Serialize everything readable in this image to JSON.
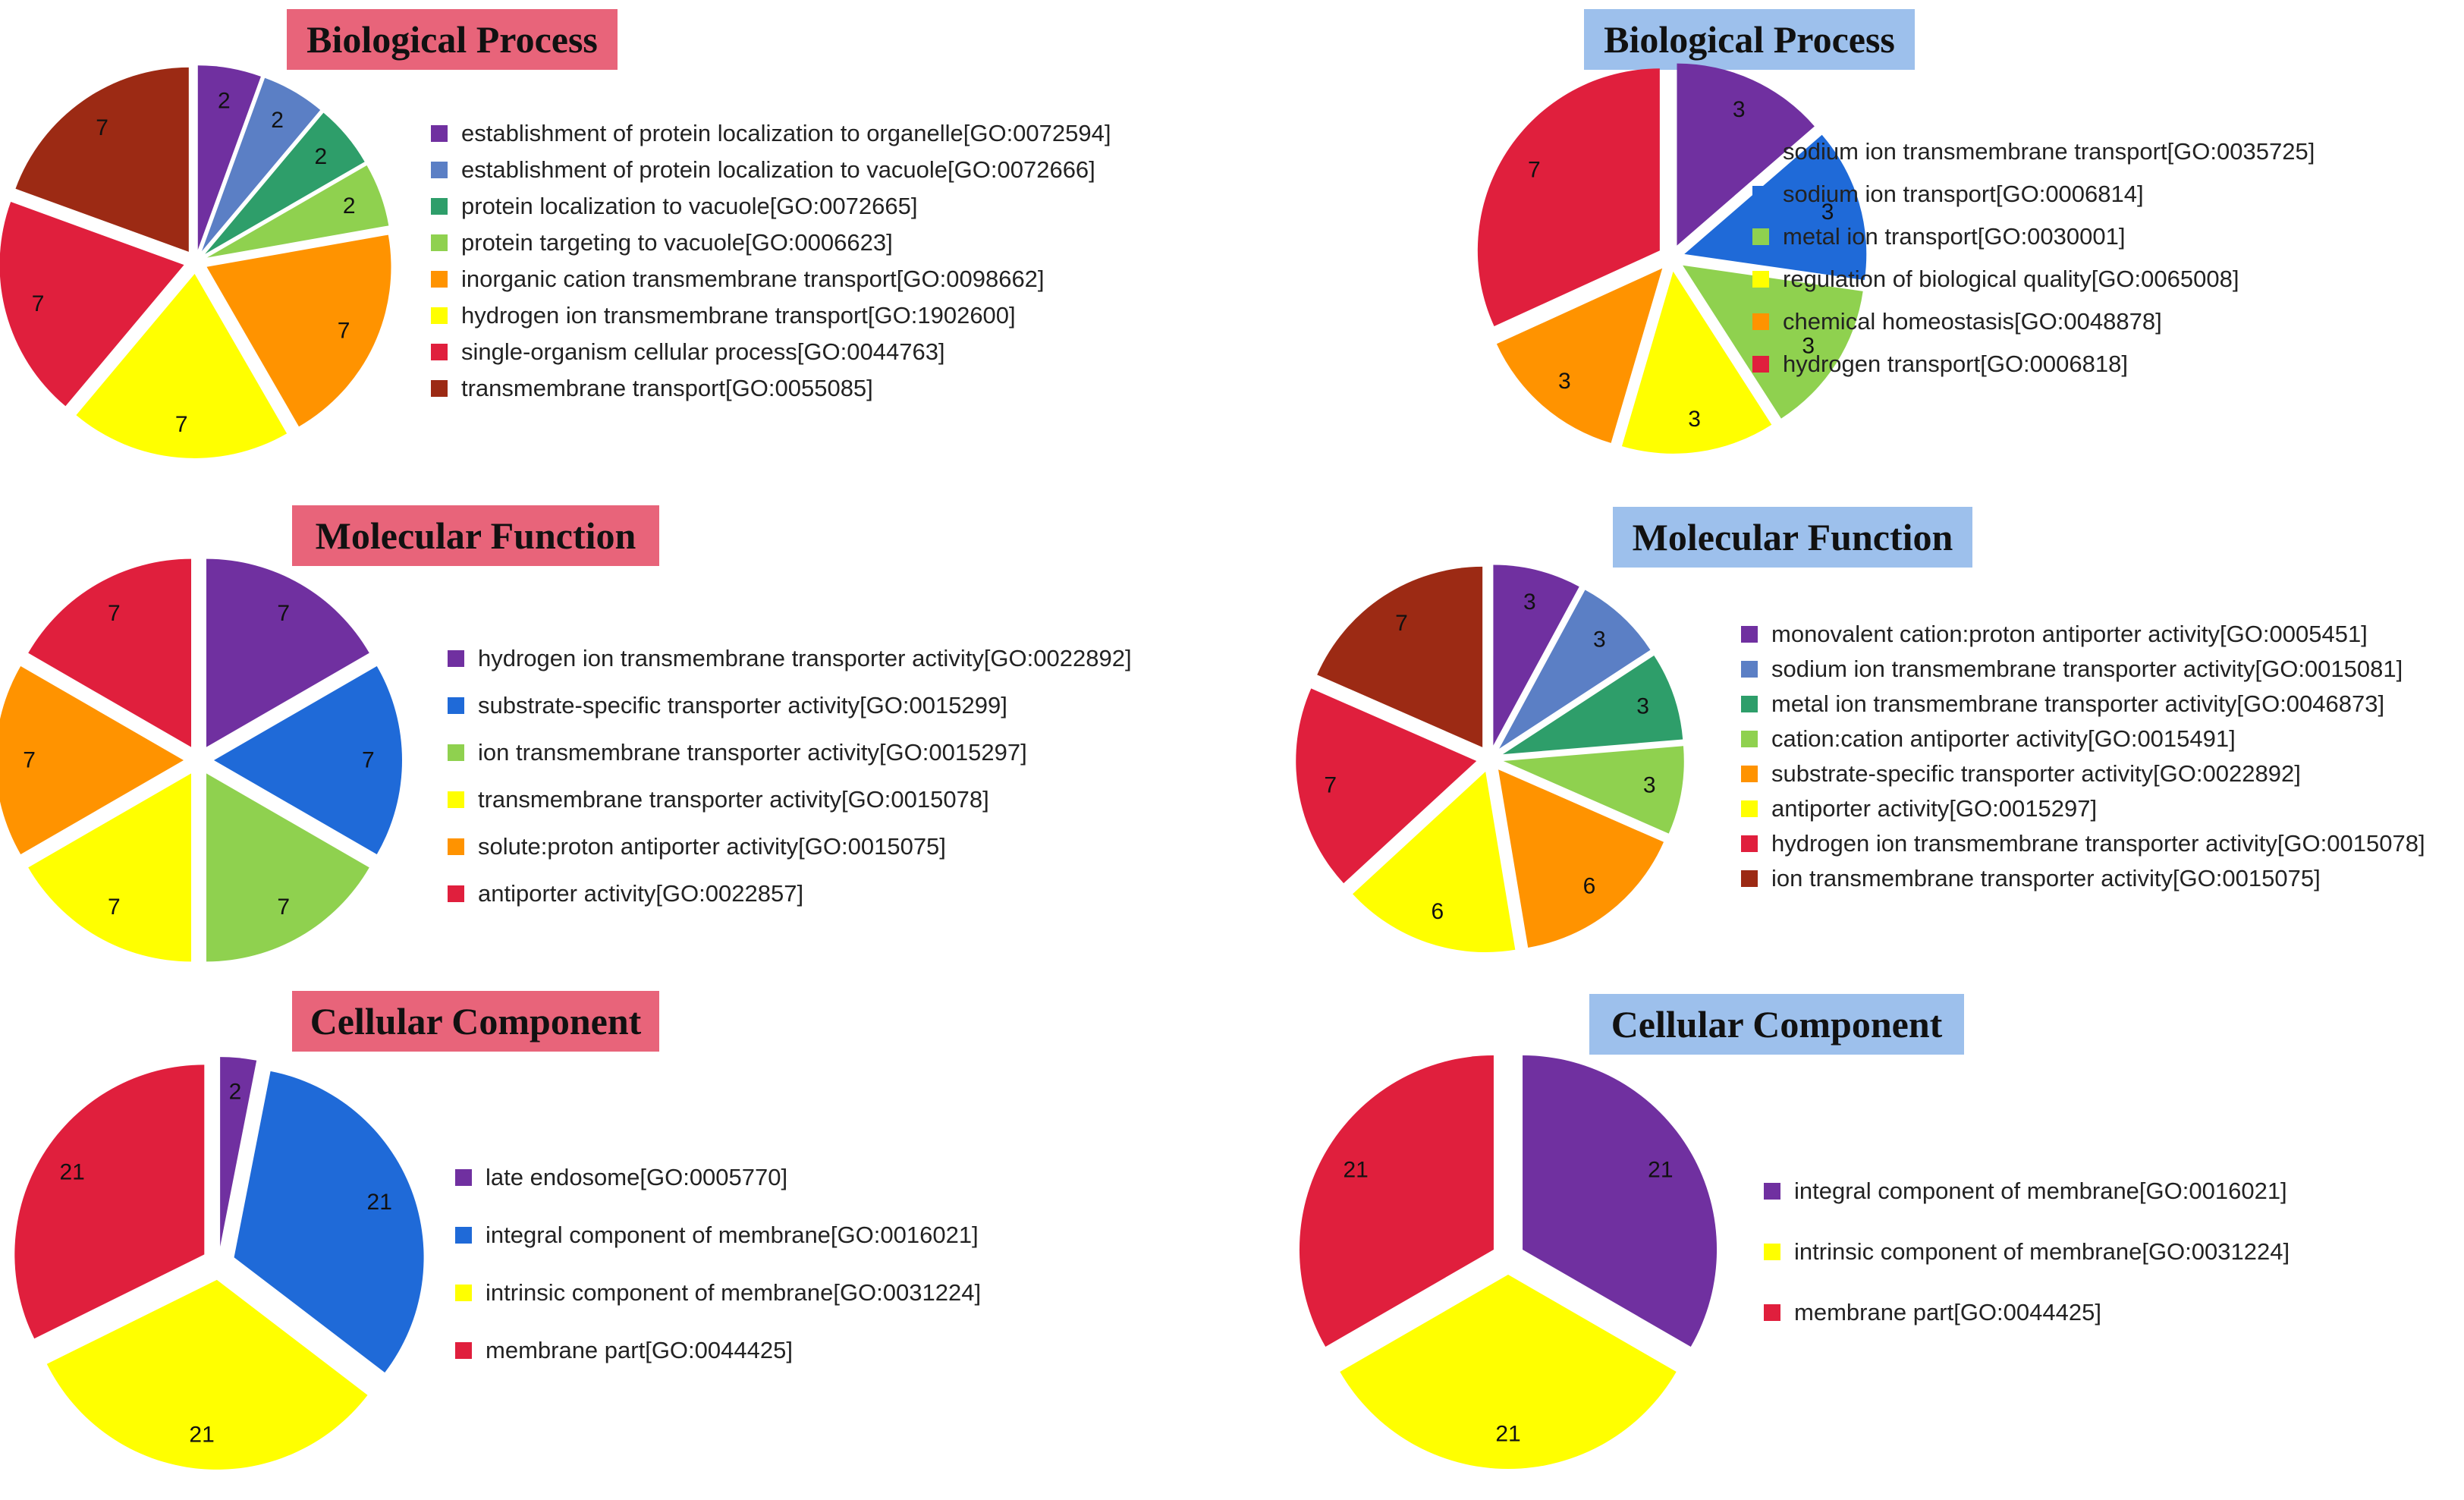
{
  "colors": {
    "purple": "#7030a0",
    "steelblue": "#5b7fc5",
    "teal": "#2e9e6a",
    "lightgreen": "#8fd14f",
    "orange": "#ff9300",
    "yellow": "#ffff00",
    "red": "#e01f3d",
    "darkred": "#9c2a14",
    "blue": "#1f6ad8"
  },
  "chart_data": [
    {
      "type": "pie",
      "title": "Biological Process",
      "title_style": "red",
      "labels": [
        "establishment of protein localization to organelle[GO:0072594]",
        "establishment of protein localization to vacuole[GO:0072666]",
        "protein localization to vacuole[GO:0072665]",
        "protein targeting to vacuole[GO:0006623]",
        "inorganic cation transmembrane transport[GO:0098662]",
        "hydrogen ion transmembrane transport[GO:1902600]",
        "single-organism cellular process[GO:0044763]",
        "transmembrane transport[GO:0055085]"
      ],
      "values": [
        2,
        2,
        2,
        2,
        7,
        7,
        7,
        7
      ],
      "colors": [
        "purple",
        "steelblue",
        "teal",
        "lightgreen",
        "orange",
        "yellow",
        "red",
        "darkred"
      ]
    },
    {
      "type": "pie",
      "title": "Biological Process",
      "title_style": "blue",
      "labels": [
        "sodium ion transmembrane transport[GO:0035725]",
        "sodium ion transport[GO:0006814]",
        "metal ion transport[GO:0030001]",
        "regulation of biological quality[GO:0065008]",
        "chemical homeostasis[GO:0048878]",
        "hydrogen transport[GO:0006818]"
      ],
      "values": [
        3,
        3,
        3,
        3,
        3,
        7
      ],
      "colors": [
        "purple",
        "blue",
        "lightgreen",
        "yellow",
        "orange",
        "red"
      ]
    },
    {
      "type": "pie",
      "title": "Molecular Function",
      "title_style": "red",
      "labels": [
        "hydrogen ion transmembrane transporter activity[GO:0022892]",
        "substrate-specific transporter activity[GO:0015299]",
        "ion transmembrane transporter activity[GO:0015297]",
        "transmembrane transporter activity[GO:0015078]",
        "solute:proton antiporter activity[GO:0015075]",
        "antiporter activity[GO:0022857]"
      ],
      "values": [
        7,
        7,
        7,
        7,
        7,
        7
      ],
      "colors": [
        "purple",
        "blue",
        "lightgreen",
        "yellow",
        "orange",
        "red"
      ]
    },
    {
      "type": "pie",
      "title": "Molecular Function",
      "title_style": "blue",
      "labels": [
        "monovalent cation:proton antiporter activity[GO:0005451]",
        "sodium ion transmembrane transporter activity[GO:0015081]",
        "metal ion transmembrane transporter activity[GO:0046873]",
        "cation:cation antiporter activity[GO:0015491]",
        "substrate-specific transporter activity[GO:0022892]",
        "antiporter activity[GO:0015297]",
        "hydrogen ion transmembrane transporter activity[GO:0015078]",
        "ion transmembrane transporter activity[GO:0015075]"
      ],
      "values": [
        3,
        3,
        3,
        3,
        6,
        6,
        7,
        7
      ],
      "colors": [
        "purple",
        "steelblue",
        "teal",
        "lightgreen",
        "orange",
        "yellow",
        "red",
        "darkred"
      ]
    },
    {
      "type": "pie",
      "title": "Cellular Component",
      "title_style": "red",
      "labels": [
        "late endosome[GO:0005770]",
        "integral component of membrane[GO:0016021]",
        "intrinsic component of membrane[GO:0031224]",
        "membrane part[GO:0044425]"
      ],
      "values": [
        2,
        21,
        21,
        21
      ],
      "colors": [
        "purple",
        "blue",
        "yellow",
        "red"
      ]
    },
    {
      "type": "pie",
      "title": "Cellular Component",
      "title_style": "blue",
      "labels": [
        "integral component of membrane[GO:0016021]",
        "intrinsic component of membrane[GO:0031224]",
        "membrane part[GO:0044425]"
      ],
      "values": [
        21,
        21,
        21
      ],
      "colors": [
        "purple",
        "yellow",
        "red"
      ]
    }
  ]
}
